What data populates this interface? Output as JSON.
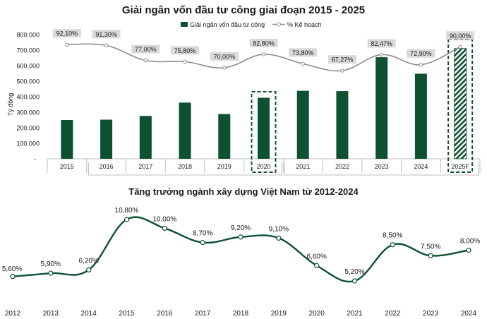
{
  "colors": {
    "bar": "#0d5130",
    "line_top": "#8c8c8c",
    "line_bottom": "#0d5130",
    "label_box": "#d9d9d9",
    "highlight_border": "#0d5130",
    "axis": "#bfbfbf"
  },
  "chart_data": [
    {
      "type": "bar+line",
      "title": "Giải ngân vốn đầu tư công giai đoạn 2015 - 2025",
      "ylabel": "Tỷ đồng",
      "ylim": [
        0,
        800000
      ],
      "y_ticks": [
        "-",
        "100.000",
        "200.000",
        "300.000",
        "400.000",
        "500.000",
        "600.000",
        "700.000",
        "800.000"
      ],
      "categories": [
        "2015",
        "2016",
        "2017",
        "2018",
        "2019",
        "2020",
        "2021",
        "2022",
        "2023",
        "2024",
        "2025F"
      ],
      "series": [
        {
          "name": "Giải ngân vốn đầu tư công",
          "kind": "bar",
          "values": [
            250000,
            252000,
            276000,
            362000,
            288000,
            393000,
            438000,
            436000,
            654000,
            548000,
            711000
          ]
        },
        {
          "name": "% Kế hoạch",
          "kind": "line",
          "values": [
            92.1,
            91.3,
            77.0,
            75.8,
            70.0,
            82.8,
            73.8,
            67.27,
            82.47,
            72.9,
            90.0
          ],
          "labels": [
            "92,10%",
            "91,30%",
            "77,00%",
            "75,80%",
            "70,00%",
            "82,80%",
            "73,80%",
            "67,27%",
            "82,47%",
            "72,90%",
            "90,00%"
          ]
        }
      ],
      "highlighted": [
        "2020",
        "2025F"
      ],
      "forecast_category": "2025F",
      "legend": {
        "bar_label": "Giải ngân vốn đầu tư công",
        "line_label": "% Kế hoạch",
        "placement": "top-center"
      }
    },
    {
      "type": "line",
      "title": "Tăng trưởng ngành xây dựng Việt Nam từ 2012-2024",
      "categories": [
        "2012",
        "2013",
        "2014",
        "2015",
        "2016",
        "2017",
        "2018",
        "2019",
        "2020",
        "2021",
        "2022",
        "2023",
        "2024"
      ],
      "values": [
        5.6,
        5.9,
        6.2,
        10.8,
        10.0,
        8.7,
        9.2,
        9.1,
        6.6,
        5.2,
        8.5,
        7.5,
        8.0
      ],
      "labels": [
        "5,60%",
        "5,90%",
        "6,20%",
        "10,80%",
        "10,00%",
        "8,70%",
        "9,20%",
        "9,10%",
        "6,60%",
        "5,20%",
        "8,50%",
        "7,50%",
        "8,00%"
      ],
      "smooth": true
    }
  ]
}
